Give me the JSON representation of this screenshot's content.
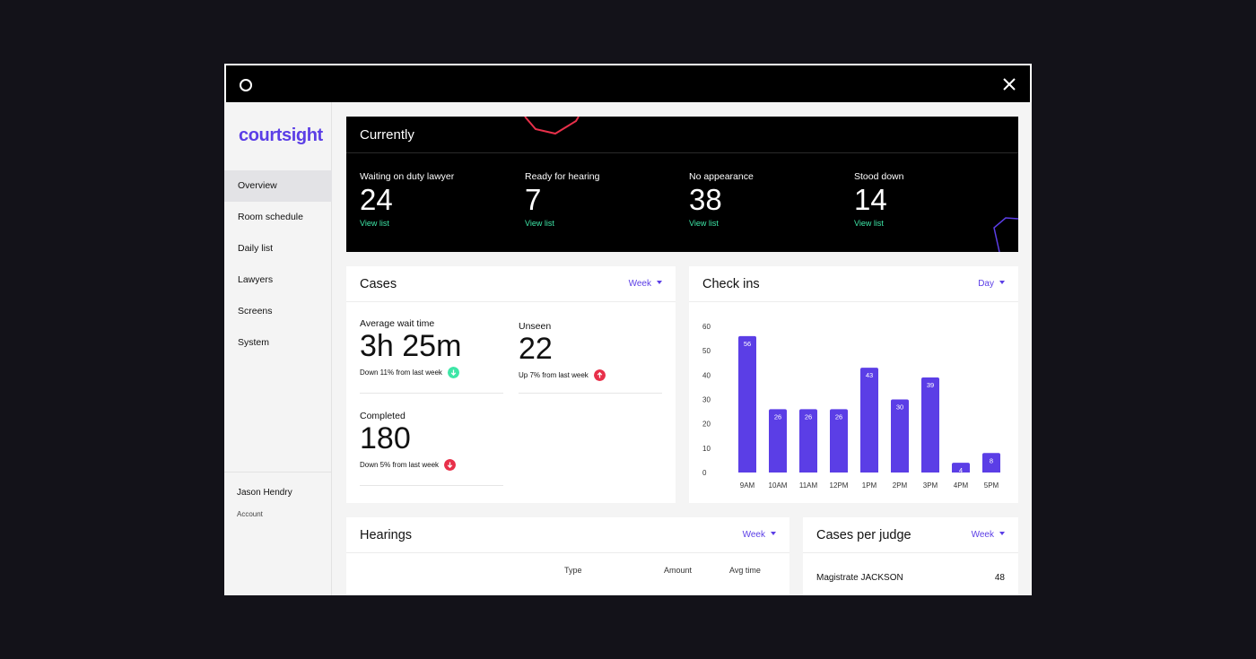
{
  "app": {
    "brand": "courtsight"
  },
  "sidebar": {
    "items": [
      {
        "label": "Overview",
        "active": true
      },
      {
        "label": "Room schedule"
      },
      {
        "label": "Daily list"
      },
      {
        "label": "Lawyers"
      },
      {
        "label": "Screens"
      },
      {
        "label": "System"
      }
    ],
    "user": {
      "name": "Jason Hendry",
      "account": "Account"
    }
  },
  "currently": {
    "title": "Currently",
    "stats": [
      {
        "label": "Waiting on duty lawyer",
        "value": "24",
        "link": "View list"
      },
      {
        "label": "Ready for hearing",
        "value": "7",
        "link": "View list"
      },
      {
        "label": "No appearance",
        "value": "38",
        "link": "View list"
      },
      {
        "label": "Stood down",
        "value": "14",
        "link": "View list"
      }
    ]
  },
  "cases": {
    "title": "Cases",
    "period": "Week",
    "metrics": [
      {
        "label": "Average wait time",
        "value": "3h 25m",
        "delta": "Down 11% from last week",
        "trend": "down",
        "color": "#3ee6a7"
      },
      {
        "label": "Unseen",
        "value": "22",
        "delta": "Up 7% from last week",
        "trend": "up",
        "color": "#e8304a"
      },
      {
        "label": "Completed",
        "value": "180",
        "delta": "Down 5% from last week",
        "trend": "down",
        "color": "#e8304a"
      }
    ]
  },
  "checkins": {
    "title": "Check ins",
    "period": "Day"
  },
  "chart_data": {
    "type": "bar",
    "categories": [
      "9AM",
      "10AM",
      "11AM",
      "12PM",
      "1PM",
      "2PM",
      "3PM",
      "4PM",
      "5PM"
    ],
    "values": [
      56,
      26,
      26,
      26,
      43,
      30,
      39,
      4,
      8
    ],
    "title": "Check ins",
    "xlabel": "",
    "ylabel": "",
    "ylim": [
      0,
      60
    ],
    "yticks": [
      0,
      10,
      20,
      30,
      40,
      50,
      60
    ],
    "color": "#5b3ee6",
    "grid": false
  },
  "hearings": {
    "title": "Hearings",
    "period": "Week",
    "columns": [
      "Type",
      "Amount",
      "Avg time"
    ]
  },
  "judges": {
    "title": "Cases per judge",
    "period": "Week",
    "rows": [
      {
        "name": "Magistrate JACKSON",
        "count": "48"
      }
    ]
  },
  "colors": {
    "accent": "#5b3ee6",
    "positive": "#3ee6a7",
    "negative": "#e8304a"
  }
}
